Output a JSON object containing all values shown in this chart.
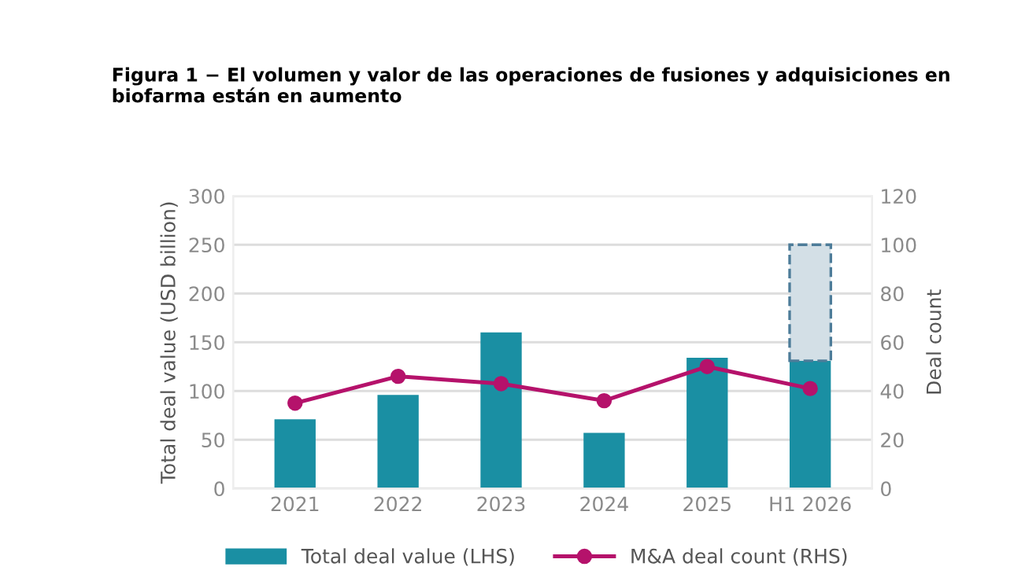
{
  "chart_data": {
    "type": "bar",
    "title": "Figura 1 − El volumen y valor de las operaciones de fusiones y adquisiciones en biofarma están en aumento",
    "categories": [
      "2021",
      "2022",
      "2023",
      "2024",
      "2025",
      "H1 2026"
    ],
    "stacked": true,
    "series": [
      {
        "name": "Total deal value (LHS)",
        "color": "#1a8fa3",
        "values": [
          71,
          96,
          160,
          57,
          134,
          131
        ]
      },
      {
        "color": "#d3dfe6",
        "line_style": "dashed",
        "values": [
          null,
          null,
          null,
          null,
          null,
          119
        ]
      },
      {
        "name": "M&A deal count (RHS)",
        "type": "line",
        "axis": "y2",
        "color": "#b5126b",
        "marker": "circle",
        "values": [
          35,
          46,
          43,
          36,
          50,
          41
        ]
      }
    ],
    "ylabel": "Total deal value (USD billion)",
    "y2label": "Deal count",
    "ylim": [
      0,
      300
    ],
    "yticks": [
      0,
      50,
      100,
      150,
      200,
      250,
      300
    ],
    "y2lim": [
      0,
      120
    ],
    "y2ticks": [
      0,
      20,
      40,
      60,
      80,
      100,
      120
    ],
    "grid": "y",
    "legend": "bottom"
  }
}
